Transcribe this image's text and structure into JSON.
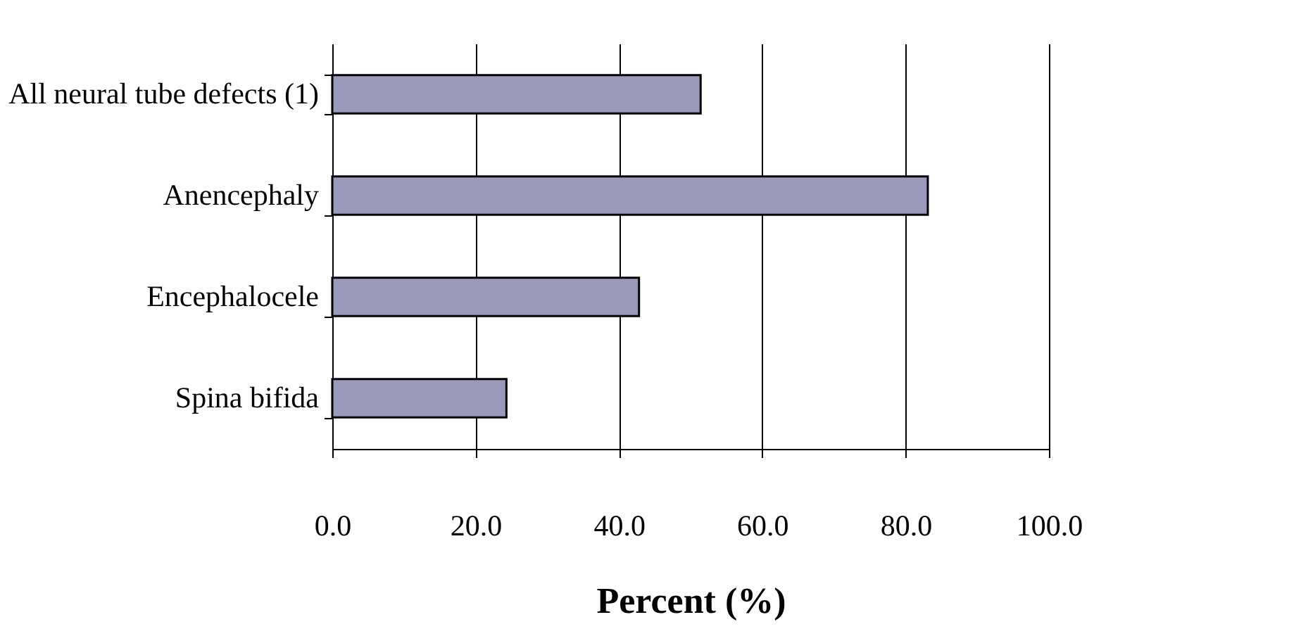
{
  "chart_data": {
    "type": "bar",
    "orientation": "horizontal",
    "xlabel": "Percent (%)",
    "categories": [
      "All neural tube defects (1)",
      "Anencephaly",
      "Encephalocele",
      "Spina bifida"
    ],
    "values": [
      51.4,
      83.1,
      42.8,
      24.3
    ],
    "color": "#9999bb",
    "xlim": [
      0,
      100
    ],
    "xticks": [
      {
        "value": 0,
        "label": "0.0"
      },
      {
        "value": 20,
        "label": "20.0"
      },
      {
        "value": 40,
        "label": "40.0"
      },
      {
        "value": 60,
        "label": "60.0"
      },
      {
        "value": 80,
        "label": "80.0"
      },
      {
        "value": 100,
        "label": "100.0"
      }
    ],
    "grid": "x"
  }
}
